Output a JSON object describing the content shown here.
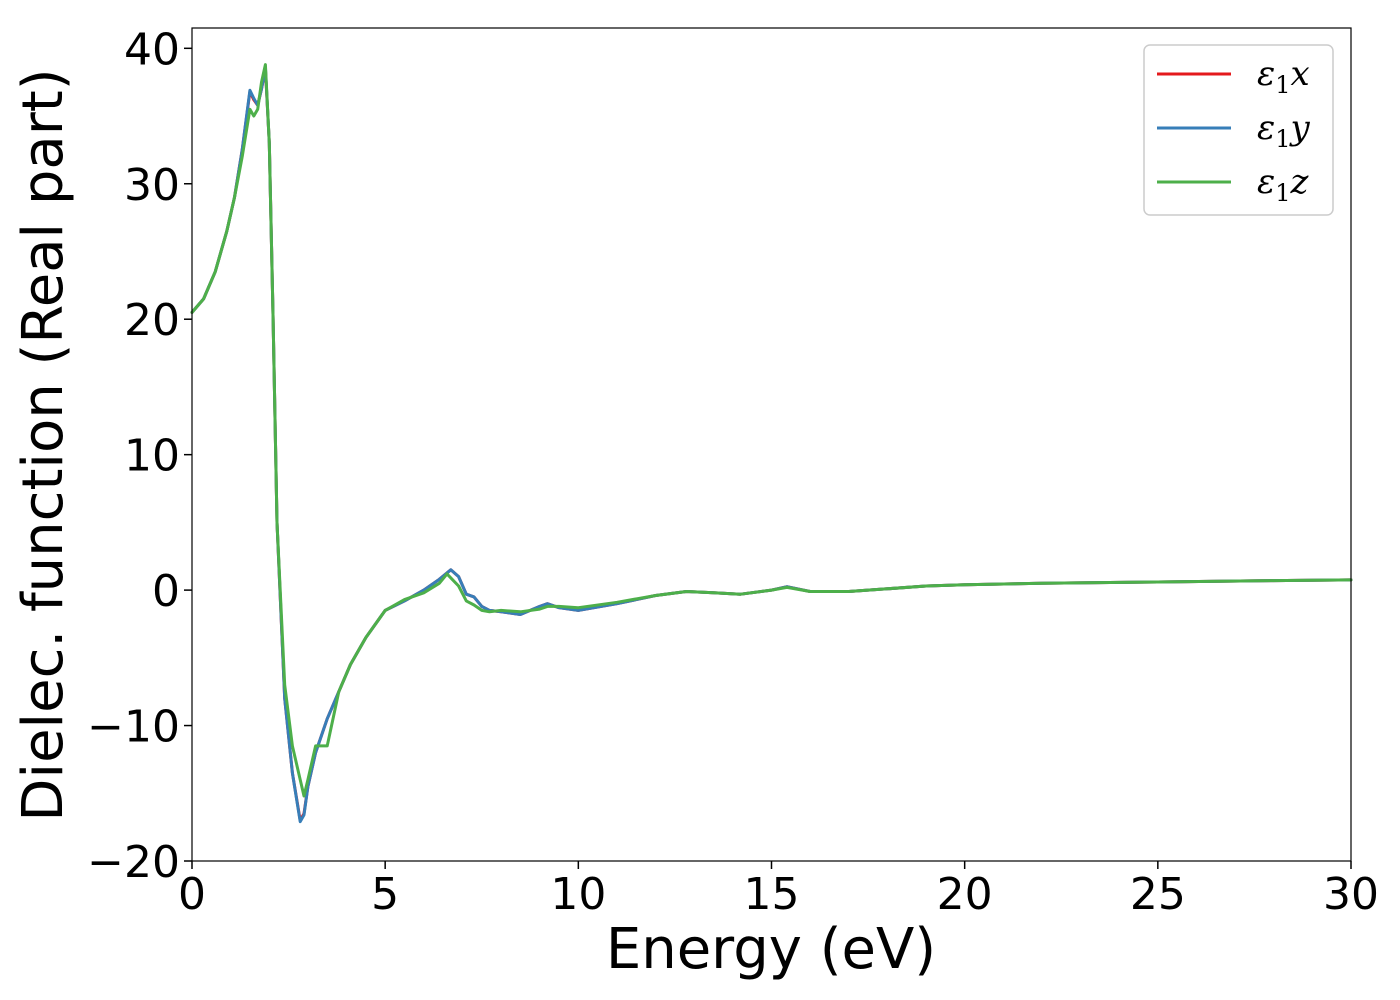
{
  "chart_data": {
    "type": "line",
    "title": "",
    "xlabel": "Energy (eV)",
    "ylabel": "Dielec. function (Real part)",
    "xlim": [
      0,
      30
    ],
    "ylim": [
      -20,
      41.5
    ],
    "xticks": [
      0,
      5,
      10,
      15,
      20,
      25,
      30
    ],
    "xtick_labels": [
      "0",
      "5",
      "10",
      "15",
      "20",
      "25",
      "30"
    ],
    "yticks": [
      -20,
      -10,
      0,
      10,
      20,
      30,
      40
    ],
    "ytick_labels": [
      "−20",
      "−10",
      "0",
      "10",
      "20",
      "30",
      "40"
    ],
    "grid": false,
    "legend": {
      "position": "top-right"
    },
    "series": [
      {
        "name": "ε",
        "name_sub": "1",
        "name_suffix": "x",
        "color": "#e41a1c",
        "x": [
          0,
          0.3,
          0.6,
          0.9,
          1.1,
          1.3,
          1.5,
          1.6,
          1.7,
          1.8,
          1.9,
          2.0,
          2.1,
          2.2,
          2.4,
          2.6,
          2.8,
          2.9,
          3.0,
          3.2,
          3.5,
          3.8,
          4.1,
          4.5,
          5.0,
          5.5,
          6.0,
          6.4,
          6.7,
          6.9,
          7.1,
          7.3,
          7.5,
          7.7,
          8.0,
          8.5,
          9.0,
          9.2,
          9.5,
          10.0,
          11.0,
          12.0,
          12.8,
          13.5,
          14.2,
          15.0,
          15.4,
          16.0,
          17.0,
          18.0,
          19.0,
          20.0,
          22.0,
          25.0,
          28.0,
          30.0
        ],
        "y": [
          20.5,
          21.5,
          23.5,
          26.5,
          29.0,
          32.5,
          36.8,
          36.2,
          35.8,
          37.0,
          38.5,
          33.0,
          20.0,
          5.0,
          -8.0,
          -13.5,
          -17.0,
          -16.5,
          -14.5,
          -12.0,
          -9.5,
          -7.5,
          -5.5,
          -3.5,
          -1.5,
          -0.8,
          0.0,
          0.8,
          1.5,
          1.0,
          -0.3,
          -0.5,
          -1.2,
          -1.5,
          -1.6,
          -1.8,
          -1.2,
          -1.0,
          -1.3,
          -1.5,
          -1.0,
          -0.4,
          -0.1,
          -0.2,
          -0.3,
          0.0,
          0.25,
          -0.1,
          -0.1,
          0.1,
          0.3,
          0.4,
          0.5,
          0.6,
          0.7,
          0.75
        ]
      },
      {
        "name": "ε",
        "name_sub": "1",
        "name_suffix": "y",
        "color": "#377eb8",
        "x": [
          0,
          0.3,
          0.6,
          0.9,
          1.1,
          1.3,
          1.5,
          1.6,
          1.7,
          1.8,
          1.9,
          2.0,
          2.1,
          2.2,
          2.4,
          2.6,
          2.8,
          2.9,
          3.0,
          3.2,
          3.5,
          3.8,
          4.1,
          4.5,
          5.0,
          5.5,
          6.0,
          6.4,
          6.7,
          6.9,
          7.1,
          7.3,
          7.5,
          7.7,
          8.0,
          8.5,
          9.0,
          9.2,
          9.5,
          10.0,
          11.0,
          12.0,
          12.8,
          13.5,
          14.2,
          15.0,
          15.4,
          16.0,
          17.0,
          18.0,
          19.0,
          20.0,
          22.0,
          25.0,
          28.0,
          30.0
        ],
        "y": [
          20.5,
          21.5,
          23.5,
          26.5,
          29.0,
          32.5,
          36.9,
          36.3,
          35.8,
          37.0,
          38.6,
          33.0,
          20.0,
          5.0,
          -8.0,
          -13.5,
          -17.1,
          -16.6,
          -14.5,
          -12.0,
          -9.5,
          -7.5,
          -5.5,
          -3.5,
          -1.5,
          -0.8,
          0.0,
          0.8,
          1.5,
          1.0,
          -0.3,
          -0.5,
          -1.2,
          -1.5,
          -1.6,
          -1.8,
          -1.2,
          -1.0,
          -1.3,
          -1.5,
          -1.0,
          -0.4,
          -0.1,
          -0.2,
          -0.3,
          0.0,
          0.25,
          -0.1,
          -0.1,
          0.1,
          0.3,
          0.4,
          0.5,
          0.6,
          0.7,
          0.75
        ]
      },
      {
        "name": "ε",
        "name_sub": "1",
        "name_suffix": "z",
        "color": "#4daf4a",
        "x": [
          0,
          0.3,
          0.6,
          0.9,
          1.1,
          1.3,
          1.5,
          1.6,
          1.7,
          1.8,
          1.9,
          2.0,
          2.1,
          2.2,
          2.4,
          2.6,
          2.8,
          2.9,
          3.0,
          3.2,
          3.5,
          3.8,
          4.1,
          4.5,
          5.0,
          5.5,
          6.0,
          6.4,
          6.6,
          6.9,
          7.1,
          7.3,
          7.5,
          7.7,
          8.0,
          8.5,
          9.0,
          9.2,
          9.5,
          10.0,
          11.0,
          12.0,
          12.8,
          13.5,
          14.2,
          15.0,
          15.4,
          16.0,
          17.0,
          18.0,
          19.0,
          20.0,
          22.0,
          25.0,
          28.0,
          30.0
        ],
        "y": [
          20.5,
          21.5,
          23.5,
          26.5,
          29.0,
          32.0,
          35.5,
          35.0,
          35.5,
          37.5,
          38.8,
          33.0,
          20.0,
          5.0,
          -7.0,
          -11.5,
          -14.0,
          -15.2,
          -14.0,
          -11.5,
          -11.5,
          -7.5,
          -5.5,
          -3.5,
          -1.5,
          -0.7,
          -0.2,
          0.5,
          1.2,
          0.3,
          -0.8,
          -1.1,
          -1.5,
          -1.6,
          -1.5,
          -1.6,
          -1.4,
          -1.2,
          -1.2,
          -1.3,
          -0.9,
          -0.4,
          -0.1,
          -0.2,
          -0.3,
          0.0,
          0.2,
          -0.1,
          -0.1,
          0.1,
          0.3,
          0.4,
          0.5,
          0.6,
          0.7,
          0.75
        ]
      }
    ]
  }
}
